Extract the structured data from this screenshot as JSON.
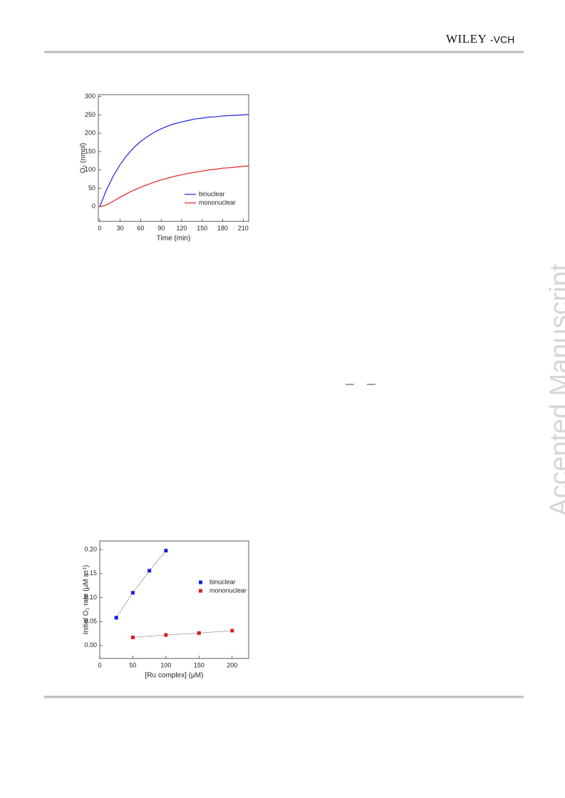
{
  "header": {
    "logo_main": "WILEY",
    "logo_suffix": "-VCH"
  },
  "watermark": "Accepted Manuscript",
  "chart_data": [
    {
      "type": "line",
      "xlabel": "Time (min)",
      "ylabel": "O₂  (nmol)",
      "x": [
        0,
        10,
        20,
        30,
        40,
        50,
        60,
        70,
        80,
        90,
        100,
        110,
        120,
        130,
        140,
        150,
        160,
        170,
        180,
        190,
        200,
        210,
        218
      ],
      "series": [
        {
          "name": "binuclear",
          "color": "#2222dd",
          "values": [
            0,
            46,
            84,
            115,
            140,
            161,
            178,
            191,
            203,
            212,
            220,
            226,
            231,
            235,
            239,
            241,
            244,
            245,
            247,
            248,
            249,
            250,
            251
          ]
        },
        {
          "name": "mononuclear",
          "color": "#e02222",
          "values": [
            0,
            5,
            15,
            26,
            36,
            45,
            53,
            60,
            67,
            73,
            78,
            83,
            87,
            91,
            94,
            97,
            100,
            102,
            105,
            106,
            108,
            110,
            111
          ]
        }
      ],
      "xlim": [
        -2,
        218
      ],
      "ylim": [
        -40,
        305
      ],
      "xticks": [
        0,
        30,
        60,
        90,
        120,
        150,
        180,
        210
      ],
      "yticks": [
        0,
        50,
        100,
        150,
        200,
        250,
        300
      ],
      "legend": "lower right"
    },
    {
      "type": "scatter",
      "xlabel": "[Ru complex]  (μM)",
      "ylabel": "Initial O₂ rate (μM s⁻¹)",
      "series": [
        {
          "name": "binuclear",
          "color": "#1a1aee",
          "x": [
            25,
            50,
            75,
            100
          ],
          "values": [
            0.058,
            0.11,
            0.156,
            0.198
          ]
        },
        {
          "name": "mononuclear",
          "color": "#e01a1a",
          "x": [
            50,
            100,
            150,
            200
          ],
          "values": [
            0.017,
            0.022,
            0.026,
            0.031
          ]
        }
      ],
      "xlim": [
        0,
        225
      ],
      "ylim": [
        -0.027,
        0.218
      ],
      "xticks": [
        0,
        50,
        100,
        150,
        200
      ],
      "yticks": [
        {
          "value": 0,
          "label": "0.00"
        },
        {
          "value": 0.05,
          "label": "0.05"
        },
        {
          "value": 0.1,
          "label": "0.10"
        },
        {
          "value": 0.15,
          "label": "0.15"
        },
        {
          "value": 0.2,
          "label": "0.20"
        }
      ],
      "legend": "right"
    }
  ]
}
